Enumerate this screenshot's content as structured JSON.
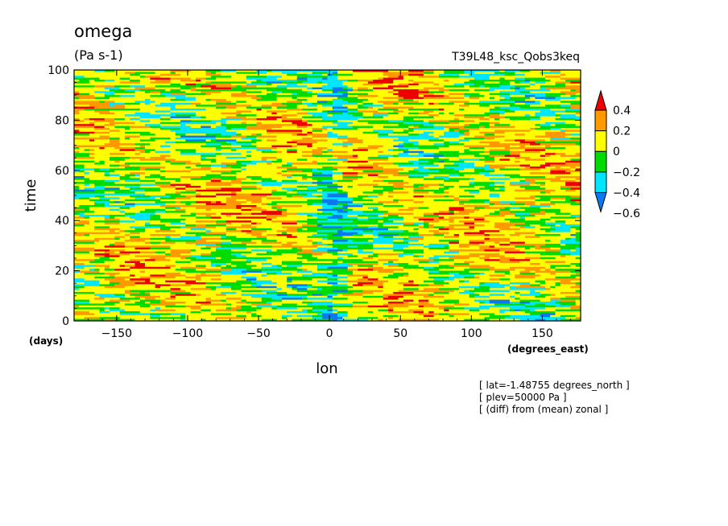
{
  "chart_data": {
    "type": "heatmap",
    "title": "omega",
    "units": "(Pa s-1)",
    "experiment": "T39L48_ksc_Qobs3keq",
    "xlabel": "lon",
    "xunits": "(degrees_east)",
    "ylabel": "time",
    "yunits": "(days)",
    "xlim": [
      -180,
      177
    ],
    "ylim": [
      0,
      100
    ],
    "x_ticks": [
      -150,
      -100,
      -50,
      0,
      50,
      100,
      150
    ],
    "x_tick_labels": [
      "-150",
      "-100",
      "-50",
      "0",
      "50",
      "100",
      "150"
    ],
    "y_ticks": [
      0,
      20,
      40,
      60,
      80,
      100
    ],
    "y_tick_labels": [
      "0",
      "20",
      "40",
      "60",
      "80",
      "100"
    ],
    "colorbar": {
      "levels": [
        -0.6,
        -0.4,
        -0.2,
        0,
        0.2,
        0.4
      ],
      "labels": [
        "0.4",
        "0.2",
        "0",
        "-0.2",
        "-0.4",
        "-0.6"
      ],
      "colors": [
        "#0a78f0",
        "#00e6ff",
        "#00dc00",
        "#ffff00",
        "#ff9900",
        "#ee0000"
      ]
    },
    "notes": [
      "[ lat=-1.48755 degrees_north ]",
      "[ plev=50000 Pa ]",
      "[ (diff) from (mean) zonal ]"
    ]
  }
}
